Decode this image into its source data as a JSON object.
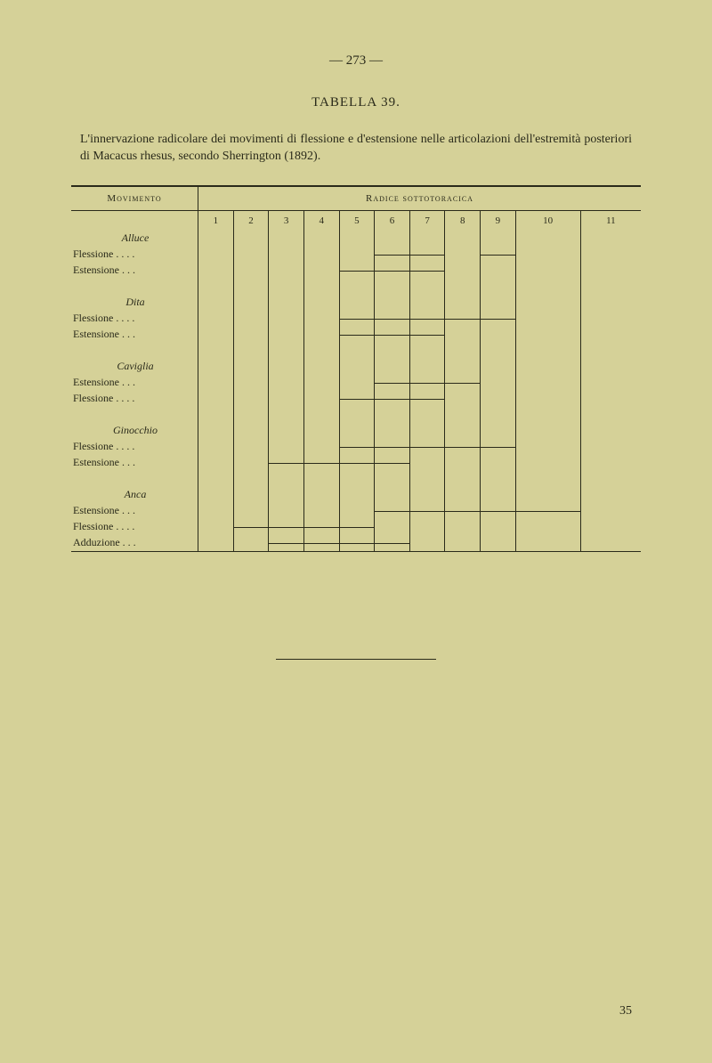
{
  "page_number_top": "— 273 —",
  "table_title": "TABELLA 39.",
  "caption": "L'innervazione radicolare dei movimenti di flessione e d'estensione nelle artico­lazioni dell'estremità posteriori di Macacus rhesus, secondo Sherrington (1892).",
  "col_headers": {
    "movimento": "Movimento",
    "radice": "Radice sottotoracica"
  },
  "columns": [
    "1",
    "2",
    "3",
    "4",
    "5",
    "6",
    "7",
    "8",
    "9",
    "10",
    "11"
  ],
  "rows": [
    {
      "type": "group",
      "label": "Alluce"
    },
    {
      "type": "data",
      "label": "Flessione . . . .",
      "bars": [
        0,
        0,
        0,
        0,
        0,
        1,
        1,
        0,
        1,
        0,
        0
      ]
    },
    {
      "type": "data",
      "label": "Estensione . . .",
      "bars": [
        0,
        0,
        0,
        0,
        1,
        1,
        1,
        0,
        0,
        0,
        0
      ]
    },
    {
      "type": "spacer"
    },
    {
      "type": "group",
      "label": "Dita"
    },
    {
      "type": "data",
      "label": "Flessione . . . .",
      "bars": [
        0,
        0,
        0,
        0,
        1,
        1,
        1,
        1,
        1,
        0,
        0
      ]
    },
    {
      "type": "data",
      "label": "Estensione . . .",
      "bars": [
        0,
        0,
        0,
        0,
        1,
        1,
        1,
        0,
        0,
        0,
        0
      ]
    },
    {
      "type": "spacer"
    },
    {
      "type": "group",
      "label": "Caviglia"
    },
    {
      "type": "data",
      "label": "Estensione . . .",
      "bars": [
        0,
        0,
        0,
        0,
        0,
        1,
        1,
        1,
        0,
        0,
        0
      ]
    },
    {
      "type": "data",
      "label": "Flessione . . . .",
      "bars": [
        0,
        0,
        0,
        0,
        1,
        1,
        1,
        0,
        0,
        0,
        0
      ]
    },
    {
      "type": "spacer"
    },
    {
      "type": "group",
      "label": "Ginocchio"
    },
    {
      "type": "data",
      "label": "Flessione . . . .",
      "bars": [
        0,
        0,
        0,
        0,
        1,
        1,
        1,
        1,
        1,
        0,
        0
      ]
    },
    {
      "type": "data",
      "label": "Estensione . . .",
      "bars": [
        0,
        0,
        1,
        1,
        1,
        1,
        0,
        0,
        0,
        0,
        0
      ]
    },
    {
      "type": "spacer"
    },
    {
      "type": "group",
      "label": "Anca"
    },
    {
      "type": "data",
      "label": "Estensione . . .",
      "bars": [
        0,
        0,
        0,
        0,
        0,
        1,
        1,
        1,
        1,
        1,
        0
      ]
    },
    {
      "type": "data",
      "label": "Flessione . . . .",
      "bars": [
        0,
        1,
        1,
        1,
        1,
        0,
        0,
        0,
        0,
        0,
        0
      ]
    },
    {
      "type": "data",
      "label": "Adduzione . . .",
      "bars": [
        0,
        0,
        1,
        1,
        1,
        1,
        0,
        0,
        0,
        0,
        0
      ]
    }
  ],
  "page_number_bottom": "35"
}
